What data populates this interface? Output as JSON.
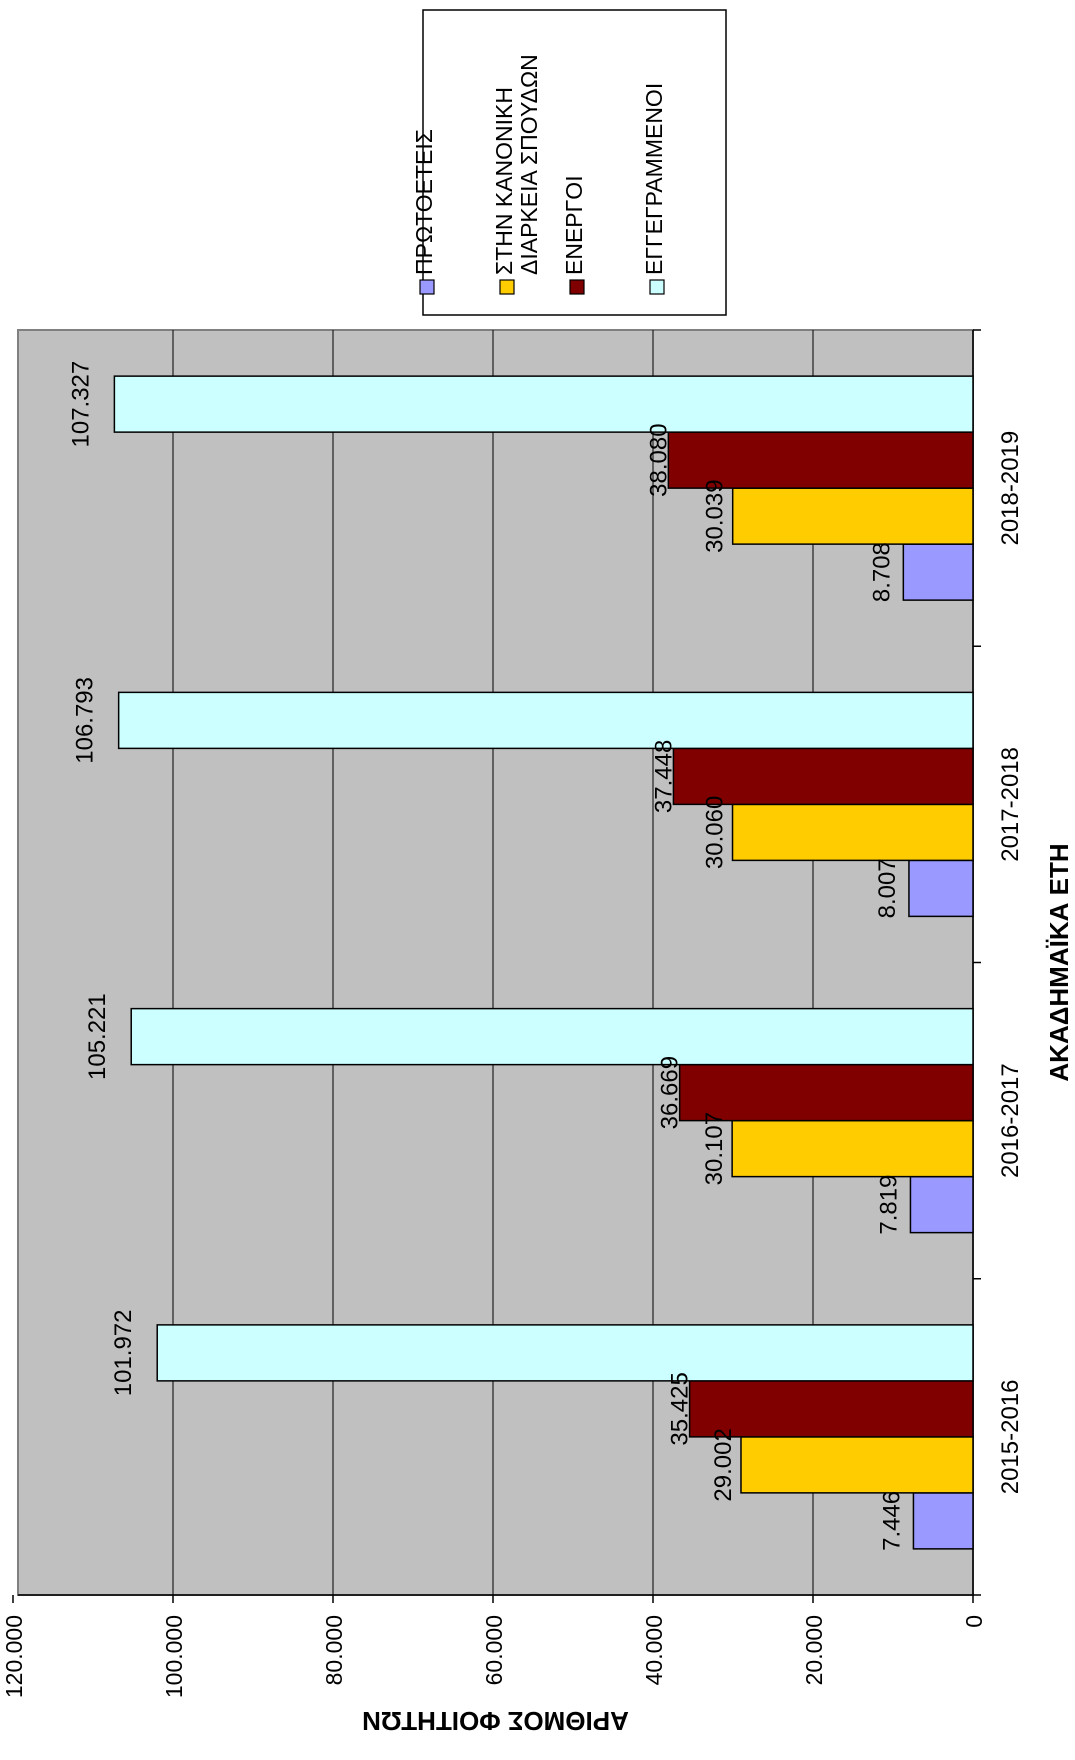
{
  "chart_data": {
    "type": "bar",
    "orientation": "rotated-90-clockwise",
    "xlabel": "ΑΚΑΔΗΜΑΪΚΑ ΕΤΗ",
    "ylabel": "ΑΡΙΘΜΟΣ ΦΟΙΤΗΤΩΝ",
    "ylim": [
      0,
      120000
    ],
    "yticks": [
      "0",
      "20.000",
      "40.000",
      "60.000",
      "80.000",
      "100.000",
      "120.000"
    ],
    "grid": true,
    "legend_position": "top-right",
    "categories": [
      "2015-2016",
      "2016-2017",
      "2017-2018",
      "2018-2019"
    ],
    "series": [
      {
        "name": "ΠΡΩΤΟΕΤΕΙΣ",
        "color": "#9999FF",
        "values": [
          7446,
          7819,
          8007,
          8708
        ],
        "labels": [
          "7.446",
          "7.819",
          "8.007",
          "8.708"
        ]
      },
      {
        "name": "ΣΤΗΝ ΚΑΝΟΝΙΚΗ ΔΙΑΡΚΕΙΑ ΣΠΟΥΔΩΝ",
        "color": "#FFCC00",
        "values": [
          29002,
          30107,
          30060,
          30039
        ],
        "labels": [
          "29.002",
          "30.107",
          "30.060",
          "30.039"
        ]
      },
      {
        "name": "ΕΝΕΡΓΟΙ",
        "color": "#800000",
        "values": [
          35425,
          36669,
          37448,
          38080
        ],
        "labels": [
          "35.425",
          "36.669",
          "37.448",
          "38.080"
        ]
      },
      {
        "name": "ΕΓΓΕΓΡΑΜΜΕΝΟΙ",
        "color": "#CCFFFF",
        "values": [
          101972,
          105221,
          106793,
          107327
        ],
        "labels": [
          "101.972",
          "105.221",
          "106.793",
          "107.327"
        ]
      }
    ],
    "legend_lines": [
      [
        "ΠΡΩΤΟΕΤΕΙΣ"
      ],
      [
        "ΣΤΗΝ ΚΑΝΟΝΙΚΗ",
        "ΔΙΑΡΚΕΙΑ ΣΠΟΥΔΩΝ"
      ],
      [
        "ΕΝΕΡΓΟΙ"
      ],
      [
        "ΕΓΓΕΓΡΑΜΜΕΝΟΙ"
      ]
    ],
    "plot_background": "#C0C0C0"
  }
}
